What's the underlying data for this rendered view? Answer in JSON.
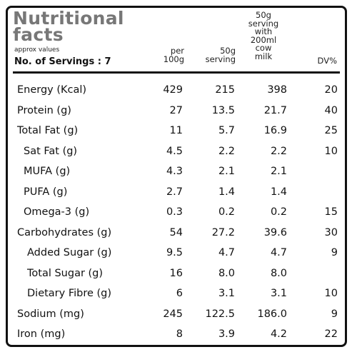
{
  "header": {
    "title_line1": "Nutritional",
    "title_line2": "facts",
    "approx": "approx values",
    "servings": "No. of Servings : 7",
    "columns": {
      "per100g": [
        "per",
        "100g"
      ],
      "serving50g": [
        "50g",
        "serving"
      ],
      "with_milk": [
        "50g",
        "serving",
        "with",
        "200ml",
        "cow",
        "milk"
      ],
      "dv": "DV%"
    }
  },
  "rows": [
    {
      "label": "Energy (Kcal)",
      "indent": 0,
      "per100g": "429",
      "serving": "215",
      "milk": "398",
      "dv": "20"
    },
    {
      "label": "Protein (g)",
      "indent": 0,
      "per100g": "27",
      "serving": "13.5",
      "milk": "21.7",
      "dv": "40"
    },
    {
      "label": "Total Fat (g)",
      "indent": 0,
      "per100g": "11",
      "serving": "5.7",
      "milk": "16.9",
      "dv": "25"
    },
    {
      "label": "Sat Fat (g)",
      "indent": 1,
      "per100g": "4.5",
      "serving": "2.2",
      "milk": "2.2",
      "dv": "10"
    },
    {
      "label": "MUFA (g)",
      "indent": 1,
      "per100g": "4.3",
      "serving": "2.1",
      "milk": "2.1",
      "dv": ""
    },
    {
      "label": "PUFA (g)",
      "indent": 1,
      "per100g": "2.7",
      "serving": "1.4",
      "milk": "1.4",
      "dv": ""
    },
    {
      "label": "Omega-3 (g)",
      "indent": 1,
      "per100g": "0.3",
      "serving": "0.2",
      "milk": "0.2",
      "dv": "15"
    },
    {
      "label": "Carbohydrates (g)",
      "indent": 0,
      "per100g": "54",
      "serving": "27.2",
      "milk": "39.6",
      "dv": "30"
    },
    {
      "label": "Added Sugar (g)",
      "indent": 2,
      "per100g": "9.5",
      "serving": "4.7",
      "milk": "4.7",
      "dv": "9"
    },
    {
      "label": "Total Sugar (g)",
      "indent": 2,
      "per100g": "16",
      "serving": "8.0",
      "milk": "8.0",
      "dv": ""
    },
    {
      "label": "Dietary Fibre (g)",
      "indent": 2,
      "per100g": "6",
      "serving": "3.1",
      "milk": "3.1",
      "dv": "10"
    },
    {
      "label": "Sodium (mg)",
      "indent": 0,
      "per100g": "245",
      "serving": "122.5",
      "milk": "186.0",
      "dv": "9"
    },
    {
      "label": "Iron (mg)",
      "indent": 0,
      "per100g": "8",
      "serving": "3.9",
      "milk": "4.2",
      "dv": "22"
    }
  ]
}
